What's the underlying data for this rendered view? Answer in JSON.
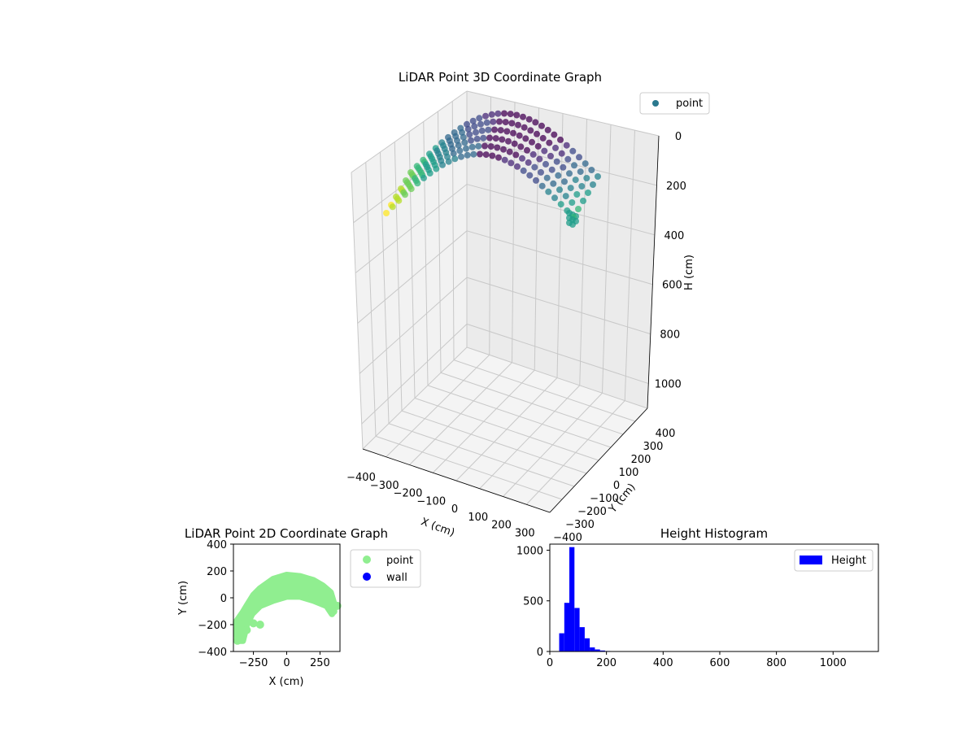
{
  "chart_data": [
    {
      "type": "scatter",
      "title": "LiDAR Point 3D Coordinate Graph",
      "xlabel": "X (cm)",
      "ylabel": "Y (cm)",
      "zlabel": "H (cm)",
      "x_ticks": [
        "−400",
        "−300",
        "−200",
        "−100",
        "0",
        "100",
        "200",
        "300"
      ],
      "y_ticks": [
        "−400",
        "−300",
        "−200",
        "−100",
        "0",
        "100",
        "200",
        "300",
        "400"
      ],
      "z_ticks": [
        "0",
        "200",
        "400",
        "600",
        "800",
        "1000"
      ],
      "xlim": [
        -400,
        400
      ],
      "ylim": [
        -400,
        400
      ],
      "zlim": [
        0,
        1100
      ],
      "z_inverted": true,
      "grid": true,
      "legend": {
        "position": "top-right",
        "entries": [
          {
            "label": "point",
            "color": "#2a788e"
          }
        ]
      },
      "colormap": "viridis",
      "series": [
        {
          "name": "point",
          "shape": "arc",
          "x_range": [
            -380,
            360
          ],
          "y_range": [
            -320,
            170
          ],
          "h_range": [
            150,
            340
          ]
        }
      ]
    },
    {
      "type": "scatter",
      "title": "LiDAR Point 2D Coordinate Graph",
      "xlabel": "X (cm)",
      "ylabel": "Y (cm)",
      "x_ticks": [
        "−250",
        "0",
        "250"
      ],
      "y_ticks": [
        "400",
        "200",
        "0",
        "−200",
        "−400"
      ],
      "xlim": [
        -400,
        400
      ],
      "ylim": [
        -400,
        400
      ],
      "grid": false,
      "legend": {
        "position": "outside-right",
        "entries": [
          {
            "label": "point",
            "color": "#90ee90"
          },
          {
            "label": "wall",
            "color": "#0000ff"
          }
        ]
      },
      "series": [
        {
          "name": "point",
          "color": "#90ee90",
          "outline": [
            [
              -370,
              -320
            ],
            [
              -380,
              -180
            ],
            [
              -330,
              -110
            ],
            [
              -300,
              -60
            ],
            [
              -250,
              20
            ],
            [
              -200,
              70
            ],
            [
              -100,
              140
            ],
            [
              0,
              170
            ],
            [
              100,
              160
            ],
            [
              200,
              130
            ],
            [
              270,
              90
            ],
            [
              330,
              40
            ],
            [
              360,
              -60
            ],
            [
              340,
              -120
            ],
            [
              300,
              -60
            ],
            [
              200,
              -20
            ],
            [
              100,
              10
            ],
            [
              0,
              10
            ],
            [
              -100,
              -20
            ],
            [
              -200,
              -60
            ],
            [
              -260,
              -120
            ],
            [
              -300,
              -200
            ],
            [
              -330,
              -320
            ]
          ],
          "extra_points": [
            [
              -370,
              -320
            ],
            [
              -340,
              -300
            ],
            [
              -300,
              -240
            ],
            [
              -250,
              -190
            ],
            [
              -200,
              -200
            ],
            [
              -350,
              -230
            ],
            [
              350,
              -100
            ],
            [
              380,
              -60
            ],
            [
              320,
              -20
            ]
          ]
        },
        {
          "name": "wall",
          "color": "#0000ff",
          "points": []
        }
      ]
    },
    {
      "type": "bar",
      "title": "Height Histogram",
      "xlabel": "",
      "ylabel": "",
      "x_ticks": [
        "0",
        "200",
        "400",
        "600",
        "800",
        "1000"
      ],
      "y_ticks": [
        "0",
        "500",
        "1000"
      ],
      "xlim": [
        0,
        1160
      ],
      "ylim": [
        0,
        1060
      ],
      "grid": false,
      "legend": {
        "position": "top-right",
        "entries": [
          {
            "label": "Height",
            "color": "#0000ff"
          }
        ]
      },
      "series": [
        {
          "name": "Height",
          "color": "#0000ff",
          "bin_edges": [
            33,
            51,
            69,
            87,
            105,
            123,
            141,
            159,
            177,
            195,
            213,
            231,
            249
          ],
          "counts": [
            180,
            480,
            1030,
            430,
            240,
            130,
            40,
            20,
            10,
            5,
            2,
            1
          ]
        }
      ]
    }
  ]
}
